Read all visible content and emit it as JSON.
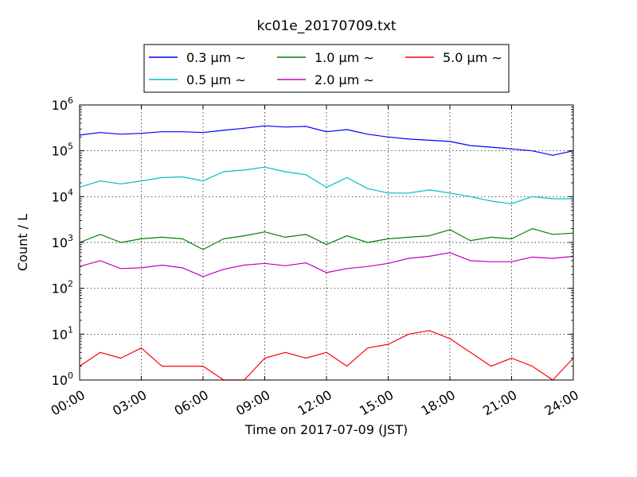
{
  "chart_data": {
    "type": "line",
    "title": "kc01e_20170709.txt",
    "xlabel": "Time on 2017-07-09 (JST)",
    "ylabel": "Count / L",
    "y_scale": "log",
    "ylim": [
      1,
      1000000
    ],
    "xlim": [
      "2017-07-09 00:00",
      "2017-07-10 00:00"
    ],
    "x_ticks": [
      "00:00",
      "03:00",
      "06:00",
      "09:00",
      "12:00",
      "15:00",
      "18:00",
      "21:00",
      "24:00"
    ],
    "y_ticks": [
      {
        "base": "10",
        "exp": "0"
      },
      {
        "base": "10",
        "exp": "1"
      },
      {
        "base": "10",
        "exp": "2"
      },
      {
        "base": "10",
        "exp": "3"
      },
      {
        "base": "10",
        "exp": "4"
      },
      {
        "base": "10",
        "exp": "5"
      },
      {
        "base": "10",
        "exp": "6"
      }
    ],
    "grid": true,
    "legend_position": "top",
    "x": [
      "00:00",
      "01:00",
      "02:00",
      "03:00",
      "04:00",
      "05:00",
      "06:00",
      "07:00",
      "08:00",
      "09:00",
      "10:00",
      "11:00",
      "12:00",
      "13:00",
      "14:00",
      "15:00",
      "16:00",
      "17:00",
      "18:00",
      "19:00",
      "20:00",
      "21:00",
      "22:00",
      "23:00",
      "24:00"
    ],
    "series": [
      {
        "name": "0.3 μm ∼",
        "color": "#0000ff",
        "values": [
          220000,
          250000,
          230000,
          240000,
          260000,
          260000,
          250000,
          280000,
          310000,
          350000,
          330000,
          340000,
          260000,
          290000,
          230000,
          200000,
          180000,
          170000,
          160000,
          130000,
          120000,
          110000,
          100000,
          80000,
          100000
        ]
      },
      {
        "name": "0.5 μm ∼",
        "color": "#00bfbf",
        "values": [
          16000,
          22000,
          19000,
          22000,
          26000,
          27000,
          22000,
          35000,
          38000,
          44000,
          35000,
          30000,
          16000,
          26000,
          15000,
          12000,
          12000,
          14000,
          12000,
          10000,
          8000,
          7000,
          10000,
          9000,
          9000
        ]
      },
      {
        "name": "1.0 μm ∼",
        "color": "#008000",
        "values": [
          1000,
          1500,
          1000,
          1200,
          1300,
          1200,
          700,
          1200,
          1400,
          1700,
          1300,
          1500,
          900,
          1400,
          1000,
          1200,
          1300,
          1400,
          1900,
          1100,
          1300,
          1200,
          2000,
          1500,
          1600
        ]
      },
      {
        "name": "2.0 μm ∼",
        "color": "#bf00bf",
        "values": [
          300,
          400,
          270,
          280,
          320,
          280,
          180,
          260,
          320,
          350,
          310,
          360,
          220,
          270,
          300,
          350,
          450,
          500,
          600,
          400,
          380,
          380,
          480,
          450,
          500
        ]
      },
      {
        "name": "5.0 μm ∼",
        "color": "#ff0000",
        "values": [
          2,
          4,
          3,
          5,
          2,
          2,
          2,
          1,
          1,
          3,
          4,
          3,
          4,
          2,
          5,
          6,
          10,
          12,
          8,
          4,
          2,
          3,
          2,
          1,
          3
        ]
      }
    ]
  }
}
